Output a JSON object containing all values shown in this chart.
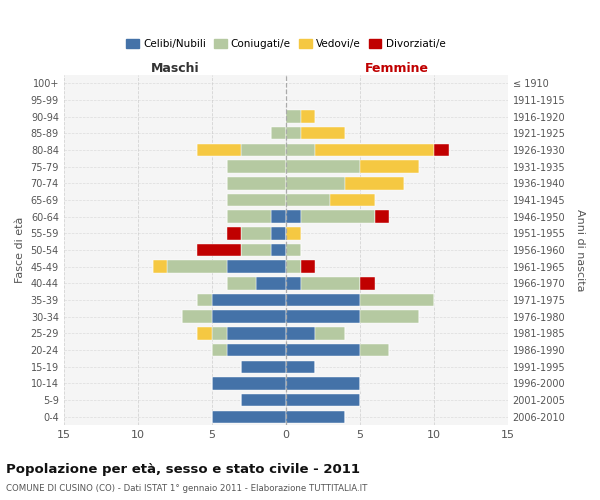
{
  "age_groups": [
    "100+",
    "95-99",
    "90-94",
    "85-89",
    "80-84",
    "75-79",
    "70-74",
    "65-69",
    "60-64",
    "55-59",
    "50-54",
    "45-49",
    "40-44",
    "35-39",
    "30-34",
    "25-29",
    "20-24",
    "15-19",
    "10-14",
    "5-9",
    "0-4"
  ],
  "birth_years": [
    "≤ 1910",
    "1911-1915",
    "1916-1920",
    "1921-1925",
    "1926-1930",
    "1931-1935",
    "1936-1940",
    "1941-1945",
    "1946-1950",
    "1951-1955",
    "1956-1960",
    "1961-1965",
    "1966-1970",
    "1971-1975",
    "1976-1980",
    "1981-1985",
    "1986-1990",
    "1991-1995",
    "1996-2000",
    "2001-2005",
    "2006-2010"
  ],
  "maschi": {
    "celibi": [
      0,
      0,
      0,
      0,
      0,
      0,
      0,
      0,
      1,
      1,
      1,
      4,
      2,
      5,
      5,
      4,
      4,
      3,
      5,
      3,
      5
    ],
    "coniugati": [
      0,
      0,
      0,
      1,
      3,
      4,
      4,
      4,
      3,
      2,
      2,
      4,
      2,
      1,
      2,
      1,
      1,
      0,
      0,
      0,
      0
    ],
    "vedovi": [
      0,
      0,
      0,
      0,
      3,
      0,
      0,
      0,
      0,
      0,
      0,
      1,
      0,
      0,
      0,
      1,
      0,
      0,
      0,
      0,
      0
    ],
    "divorziati": [
      0,
      0,
      0,
      0,
      0,
      0,
      0,
      0,
      0,
      1,
      3,
      0,
      0,
      0,
      0,
      0,
      0,
      0,
      0,
      0,
      0
    ]
  },
  "femmine": {
    "nubili": [
      0,
      0,
      0,
      0,
      0,
      0,
      0,
      0,
      1,
      0,
      0,
      0,
      1,
      5,
      5,
      2,
      5,
      2,
      5,
      5,
      4
    ],
    "coniugate": [
      0,
      0,
      1,
      1,
      2,
      5,
      4,
      3,
      5,
      0,
      1,
      1,
      4,
      5,
      4,
      2,
      2,
      0,
      0,
      0,
      0
    ],
    "vedove": [
      0,
      0,
      1,
      3,
      8,
      4,
      4,
      3,
      0,
      1,
      0,
      0,
      0,
      0,
      0,
      0,
      0,
      0,
      0,
      0,
      0
    ],
    "divorziate": [
      0,
      0,
      0,
      0,
      1,
      0,
      0,
      0,
      1,
      0,
      0,
      1,
      1,
      0,
      0,
      0,
      0,
      0,
      0,
      0,
      0
    ]
  },
  "colors": {
    "celibi": "#4472a8",
    "coniugati": "#b5c9a1",
    "vedovi": "#f5c842",
    "divorziati": "#c00000"
  },
  "xlim": 15,
  "title": "Popolazione per età, sesso e stato civile - 2011",
  "subtitle": "COMUNE DI CUSINO (CO) - Dati ISTAT 1° gennaio 2011 - Elaborazione TUTTITALIA.IT",
  "xlabel_left": "Maschi",
  "xlabel_right": "Femmine",
  "ylabel_left": "Fasce di età",
  "ylabel_right": "Anni di nascita",
  "bg_color": "#f5f5f5",
  "grid_color": "#cccccc"
}
